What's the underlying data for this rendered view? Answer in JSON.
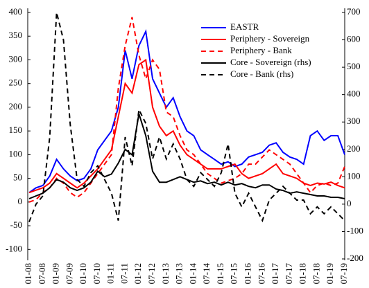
{
  "chart_data": {
    "type": "line",
    "categories": [
      "01-08",
      null,
      "07-08",
      null,
      "01-09",
      null,
      "07-09",
      null,
      "01-10",
      null,
      "07-10",
      null,
      "01-11",
      null,
      "07-11",
      null,
      "01-12",
      null,
      "07-12",
      null,
      "01-13",
      null,
      "07-13",
      null,
      "01-14",
      null,
      "07-14",
      null,
      "01-15",
      null,
      "07-15",
      null,
      "01-16",
      null,
      "07-16",
      null,
      "01-17",
      null,
      "07-17",
      null,
      "01-18",
      null,
      "07-18",
      null,
      "01-19",
      null,
      "07-19"
    ],
    "series": [
      {
        "name": "EASTR",
        "color": "#0000ff",
        "dash": "solid",
        "axis": "y",
        "values": [
          20,
          30,
          35,
          55,
          90,
          70,
          55,
          45,
          50,
          70,
          110,
          130,
          150,
          200,
          320,
          260,
          330,
          360,
          260,
          230,
          200,
          220,
          180,
          150,
          140,
          110,
          100,
          90,
          80,
          85,
          75,
          80,
          95,
          100,
          105,
          120,
          125,
          105,
          95,
          90,
          80,
          140,
          150,
          130,
          140,
          140,
          100
        ]
      },
      {
        "name": "Periphery - Sovereign",
        "color": "#ff0000",
        "dash": "solid",
        "axis": "y",
        "values": [
          20,
          25,
          30,
          40,
          60,
          50,
          40,
          30,
          40,
          55,
          70,
          90,
          110,
          180,
          250,
          230,
          290,
          300,
          200,
          160,
          140,
          150,
          120,
          100,
          90,
          80,
          70,
          70,
          70,
          75,
          80,
          60,
          50,
          55,
          60,
          70,
          80,
          60,
          55,
          50,
          40,
          35,
          40,
          38,
          42,
          35,
          30
        ]
      },
      {
        "name": "Periphery - Bank",
        "color": "#ff0000",
        "dash": "dashed",
        "axis": "y",
        "values": [
          0,
          5,
          20,
          30,
          50,
          40,
          20,
          10,
          20,
          40,
          60,
          80,
          100,
          240,
          330,
          390,
          310,
          260,
          300,
          280,
          190,
          180,
          140,
          110,
          100,
          80,
          60,
          50,
          40,
          45,
          50,
          60,
          80,
          80,
          95,
          110,
          100,
          90,
          80,
          60,
          40,
          20,
          35,
          40,
          35,
          40,
          75
        ]
      },
      {
        "name": "Core - Sovereign (rhs)",
        "color": "#000000",
        "dash": "solid",
        "axis": "y2",
        "values": [
          20,
          30,
          40,
          60,
          90,
          80,
          60,
          50,
          60,
          80,
          120,
          100,
          110,
          150,
          200,
          180,
          330,
          250,
          120,
          80,
          80,
          90,
          100,
          90,
          80,
          85,
          75,
          80,
          70,
          80,
          70,
          75,
          65,
          60,
          70,
          70,
          55,
          50,
          40,
          45,
          40,
          35,
          30,
          30,
          25,
          25,
          20
        ]
      },
      {
        "name": "Core - Bank (rhs)",
        "color": "#000000",
        "dash": "dashed",
        "axis": "y2",
        "values": [
          -65,
          0,
          30,
          245,
          700,
          600,
          290,
          90,
          65,
          115,
          140,
          90,
          40,
          -60,
          245,
          140,
          345,
          295,
          165,
          245,
          165,
          220,
          165,
          90,
          65,
          115,
          90,
          65,
          115,
          220,
          40,
          -10,
          40,
          -10,
          -60,
          15,
          40,
          65,
          40,
          15,
          15,
          -35,
          -10,
          -35,
          -10,
          -35,
          -60
        ]
      }
    ],
    "ylim": [
      -120,
      400
    ],
    "yticks": [
      -100,
      -50,
      0,
      50,
      100,
      150,
      200,
      250,
      300,
      350,
      400
    ],
    "y2lim": [
      -200,
      700
    ],
    "y2ticks": [
      -200,
      -100,
      0,
      100,
      200,
      300,
      400,
      500,
      600,
      700
    ],
    "legend": "upper center",
    "grid": false
  }
}
